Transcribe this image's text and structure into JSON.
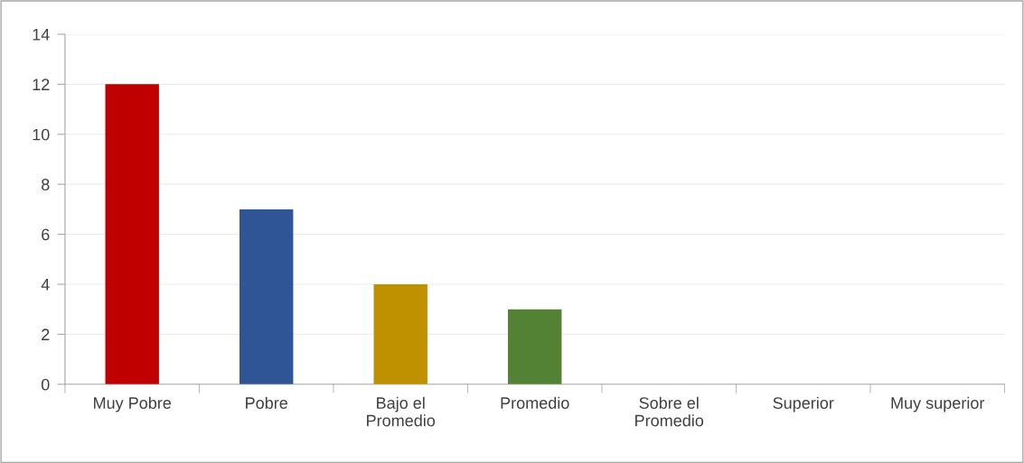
{
  "chart_data": {
    "type": "bar",
    "categories": [
      "Muy Pobre",
      "Pobre",
      "Bajo el\nPromedio",
      "Promedio",
      "Sobre el\nPromedio",
      "Superior",
      "Muy superior"
    ],
    "values": [
      12,
      7,
      4,
      3,
      0,
      0,
      0
    ],
    "colors": [
      "#c00000",
      "#2f5597",
      "#bf9000",
      "#548235",
      "#a5a5a5",
      "#a5a5a5",
      "#a5a5a5"
    ],
    "ylim": [
      0,
      14
    ],
    "yticks": [
      0,
      2,
      4,
      6,
      8,
      10,
      12,
      14
    ],
    "grid": "y",
    "legend": false
  }
}
